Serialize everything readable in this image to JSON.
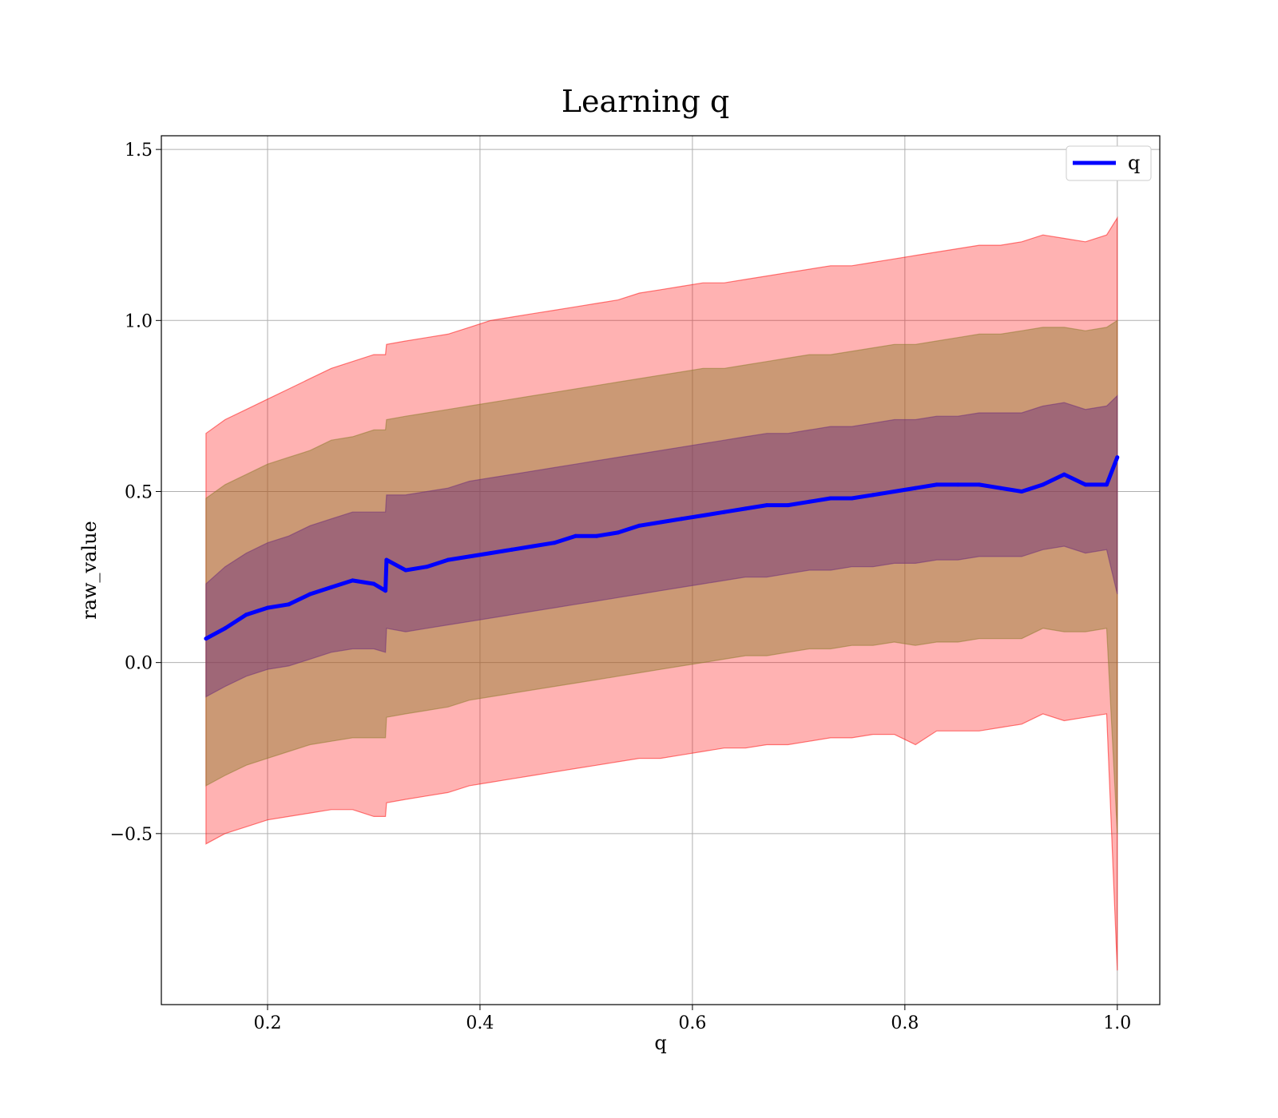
{
  "chart_data": {
    "type": "line",
    "title": "Learning q",
    "xlabel": "q",
    "ylabel": "raw_value",
    "xlim": [
      0.1,
      1.04
    ],
    "ylim": [
      -1.0,
      1.54
    ],
    "xticks": [
      0.2,
      0.4,
      0.6,
      0.8,
      1.0
    ],
    "xtick_labels": [
      "0.2",
      "0.4",
      "0.6",
      "0.8",
      "1.0"
    ],
    "yticks": [
      -0.5,
      0.0,
      0.5,
      1.0,
      1.5
    ],
    "ytick_labels": [
      "−0.5",
      "0.0",
      "0.5",
      "1.0",
      "1.5"
    ],
    "grid": true,
    "legend": {
      "position": "top-right",
      "entries": [
        "q"
      ]
    },
    "colors": {
      "mean_line": "#0000ff",
      "band_outer": "#ff0000",
      "band_middle": "#8b7a2a",
      "band_inner": "#6a2a7a"
    },
    "series": [
      {
        "name": "q",
        "x": [
          0.142,
          0.16,
          0.18,
          0.2,
          0.22,
          0.24,
          0.26,
          0.28,
          0.3,
          0.311,
          0.312,
          0.33,
          0.35,
          0.37,
          0.39,
          0.41,
          0.43,
          0.45,
          0.47,
          0.49,
          0.51,
          0.53,
          0.55,
          0.57,
          0.59,
          0.61,
          0.63,
          0.65,
          0.67,
          0.69,
          0.71,
          0.73,
          0.75,
          0.77,
          0.79,
          0.81,
          0.83,
          0.85,
          0.87,
          0.89,
          0.91,
          0.93,
          0.95,
          0.97,
          0.99,
          1.0
        ],
        "mean": [
          0.07,
          0.1,
          0.14,
          0.16,
          0.17,
          0.2,
          0.22,
          0.24,
          0.23,
          0.21,
          0.3,
          0.27,
          0.28,
          0.3,
          0.31,
          0.32,
          0.33,
          0.34,
          0.35,
          0.37,
          0.37,
          0.38,
          0.4,
          0.41,
          0.42,
          0.43,
          0.44,
          0.45,
          0.46,
          0.46,
          0.47,
          0.48,
          0.48,
          0.49,
          0.5,
          0.51,
          0.52,
          0.52,
          0.52,
          0.51,
          0.5,
          0.52,
          0.55,
          0.52,
          0.52,
          0.6
        ],
        "outer_upper": [
          0.67,
          0.71,
          0.74,
          0.77,
          0.8,
          0.83,
          0.86,
          0.88,
          0.9,
          0.9,
          0.93,
          0.94,
          0.95,
          0.96,
          0.98,
          1.0,
          1.01,
          1.02,
          1.03,
          1.04,
          1.05,
          1.06,
          1.08,
          1.09,
          1.1,
          1.11,
          1.11,
          1.12,
          1.13,
          1.14,
          1.15,
          1.16,
          1.16,
          1.17,
          1.18,
          1.19,
          1.2,
          1.21,
          1.22,
          1.22,
          1.23,
          1.25,
          1.24,
          1.23,
          1.25,
          1.3
        ],
        "outer_lower": [
          -0.53,
          -0.5,
          -0.48,
          -0.46,
          -0.45,
          -0.44,
          -0.43,
          -0.43,
          -0.45,
          -0.45,
          -0.41,
          -0.4,
          -0.39,
          -0.38,
          -0.36,
          -0.35,
          -0.34,
          -0.33,
          -0.32,
          -0.31,
          -0.3,
          -0.29,
          -0.28,
          -0.28,
          -0.27,
          -0.26,
          -0.25,
          -0.25,
          -0.24,
          -0.24,
          -0.23,
          -0.22,
          -0.22,
          -0.21,
          -0.21,
          -0.24,
          -0.2,
          -0.2,
          -0.2,
          -0.19,
          -0.18,
          -0.15,
          -0.17,
          -0.16,
          -0.15,
          -0.9
        ],
        "middle_upper": [
          0.48,
          0.52,
          0.55,
          0.58,
          0.6,
          0.62,
          0.65,
          0.66,
          0.68,
          0.68,
          0.71,
          0.72,
          0.73,
          0.74,
          0.75,
          0.76,
          0.77,
          0.78,
          0.79,
          0.8,
          0.81,
          0.82,
          0.83,
          0.84,
          0.85,
          0.86,
          0.86,
          0.87,
          0.88,
          0.89,
          0.9,
          0.9,
          0.91,
          0.92,
          0.93,
          0.93,
          0.94,
          0.95,
          0.96,
          0.96,
          0.97,
          0.98,
          0.98,
          0.97,
          0.98,
          1.0
        ],
        "middle_lower": [
          -0.36,
          -0.33,
          -0.3,
          -0.28,
          -0.26,
          -0.24,
          -0.23,
          -0.22,
          -0.22,
          -0.22,
          -0.16,
          -0.15,
          -0.14,
          -0.13,
          -0.11,
          -0.1,
          -0.09,
          -0.08,
          -0.07,
          -0.06,
          -0.05,
          -0.04,
          -0.03,
          -0.02,
          -0.01,
          0.0,
          0.01,
          0.02,
          0.02,
          0.03,
          0.04,
          0.04,
          0.05,
          0.05,
          0.06,
          0.05,
          0.06,
          0.06,
          0.07,
          0.07,
          0.07,
          0.1,
          0.09,
          0.09,
          0.1,
          -0.5
        ],
        "inner_upper": [
          0.23,
          0.28,
          0.32,
          0.35,
          0.37,
          0.4,
          0.42,
          0.44,
          0.44,
          0.44,
          0.49,
          0.49,
          0.5,
          0.51,
          0.53,
          0.54,
          0.55,
          0.56,
          0.57,
          0.58,
          0.59,
          0.6,
          0.61,
          0.62,
          0.63,
          0.64,
          0.65,
          0.66,
          0.67,
          0.67,
          0.68,
          0.69,
          0.69,
          0.7,
          0.71,
          0.71,
          0.72,
          0.72,
          0.73,
          0.73,
          0.73,
          0.75,
          0.76,
          0.74,
          0.75,
          0.78
        ],
        "inner_lower": [
          -0.1,
          -0.07,
          -0.04,
          -0.02,
          -0.01,
          0.01,
          0.03,
          0.04,
          0.04,
          0.03,
          0.1,
          0.09,
          0.1,
          0.11,
          0.12,
          0.13,
          0.14,
          0.15,
          0.16,
          0.17,
          0.18,
          0.19,
          0.2,
          0.21,
          0.22,
          0.23,
          0.24,
          0.25,
          0.25,
          0.26,
          0.27,
          0.27,
          0.28,
          0.28,
          0.29,
          0.29,
          0.3,
          0.3,
          0.31,
          0.31,
          0.31,
          0.33,
          0.34,
          0.32,
          0.33,
          0.2
        ]
      }
    ]
  }
}
